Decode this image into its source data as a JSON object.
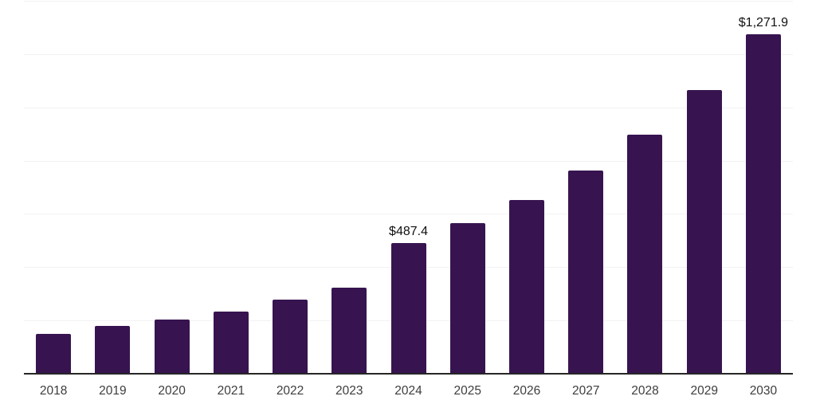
{
  "chart_data": {
    "type": "bar",
    "title": "",
    "xlabel": "",
    "ylabel": "",
    "categories": [
      "2018",
      "2019",
      "2020",
      "2021",
      "2022",
      "2023",
      "2024",
      "2025",
      "2026",
      "2027",
      "2028",
      "2029",
      "2030"
    ],
    "values": [
      146,
      176,
      200,
      231,
      274,
      320,
      487.4,
      562,
      649,
      760,
      893,
      1062,
      1271.9
    ],
    "data_labels": {
      "2024": "$487.4",
      "2030": "$1,271.9"
    },
    "ylim": [
      0,
      1400
    ],
    "grid_step": 200,
    "grid": true,
    "legend": "none",
    "colors": {
      "bar": "#371450",
      "axis_line": "#262626",
      "gridline": "#f2f2f2",
      "tick_label": "#3d3d3d",
      "value_label": "#111111",
      "background": "#ffffff"
    }
  }
}
